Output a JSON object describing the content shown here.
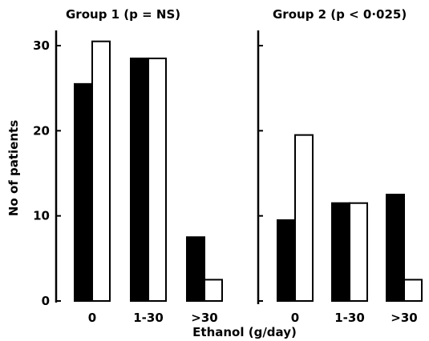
{
  "chart_data": [
    {
      "type": "bar",
      "title": "Group 1 (p = NS)",
      "categories": [
        "0",
        "1-30",
        ">30"
      ],
      "series": [
        {
          "values": [
            25.5,
            28.5,
            7.5
          ],
          "color": "#000000",
          "fill": "solid"
        },
        {
          "values": [
            30.5,
            28.5,
            2.5
          ],
          "color": "#ffffff",
          "fill": "outline"
        }
      ],
      "ylabel": "No of patients",
      "yticks": [
        0,
        10,
        20,
        30
      ],
      "ylim": [
        0,
        33
      ]
    },
    {
      "type": "bar",
      "title": "Group 2 (p < 0·025)",
      "categories": [
        "0",
        "1-30",
        ">30"
      ],
      "series": [
        {
          "values": [
            9.5,
            11.5,
            12.5
          ],
          "color": "#000000",
          "fill": "solid"
        },
        {
          "values": [
            19.5,
            11.5,
            2.5
          ],
          "color": "#ffffff",
          "fill": "outline"
        }
      ],
      "yticks": [
        0,
        10,
        20,
        30
      ],
      "ylim": [
        0,
        33
      ]
    }
  ],
  "shared": {
    "xlabel": "Ethanol (g/day)"
  }
}
